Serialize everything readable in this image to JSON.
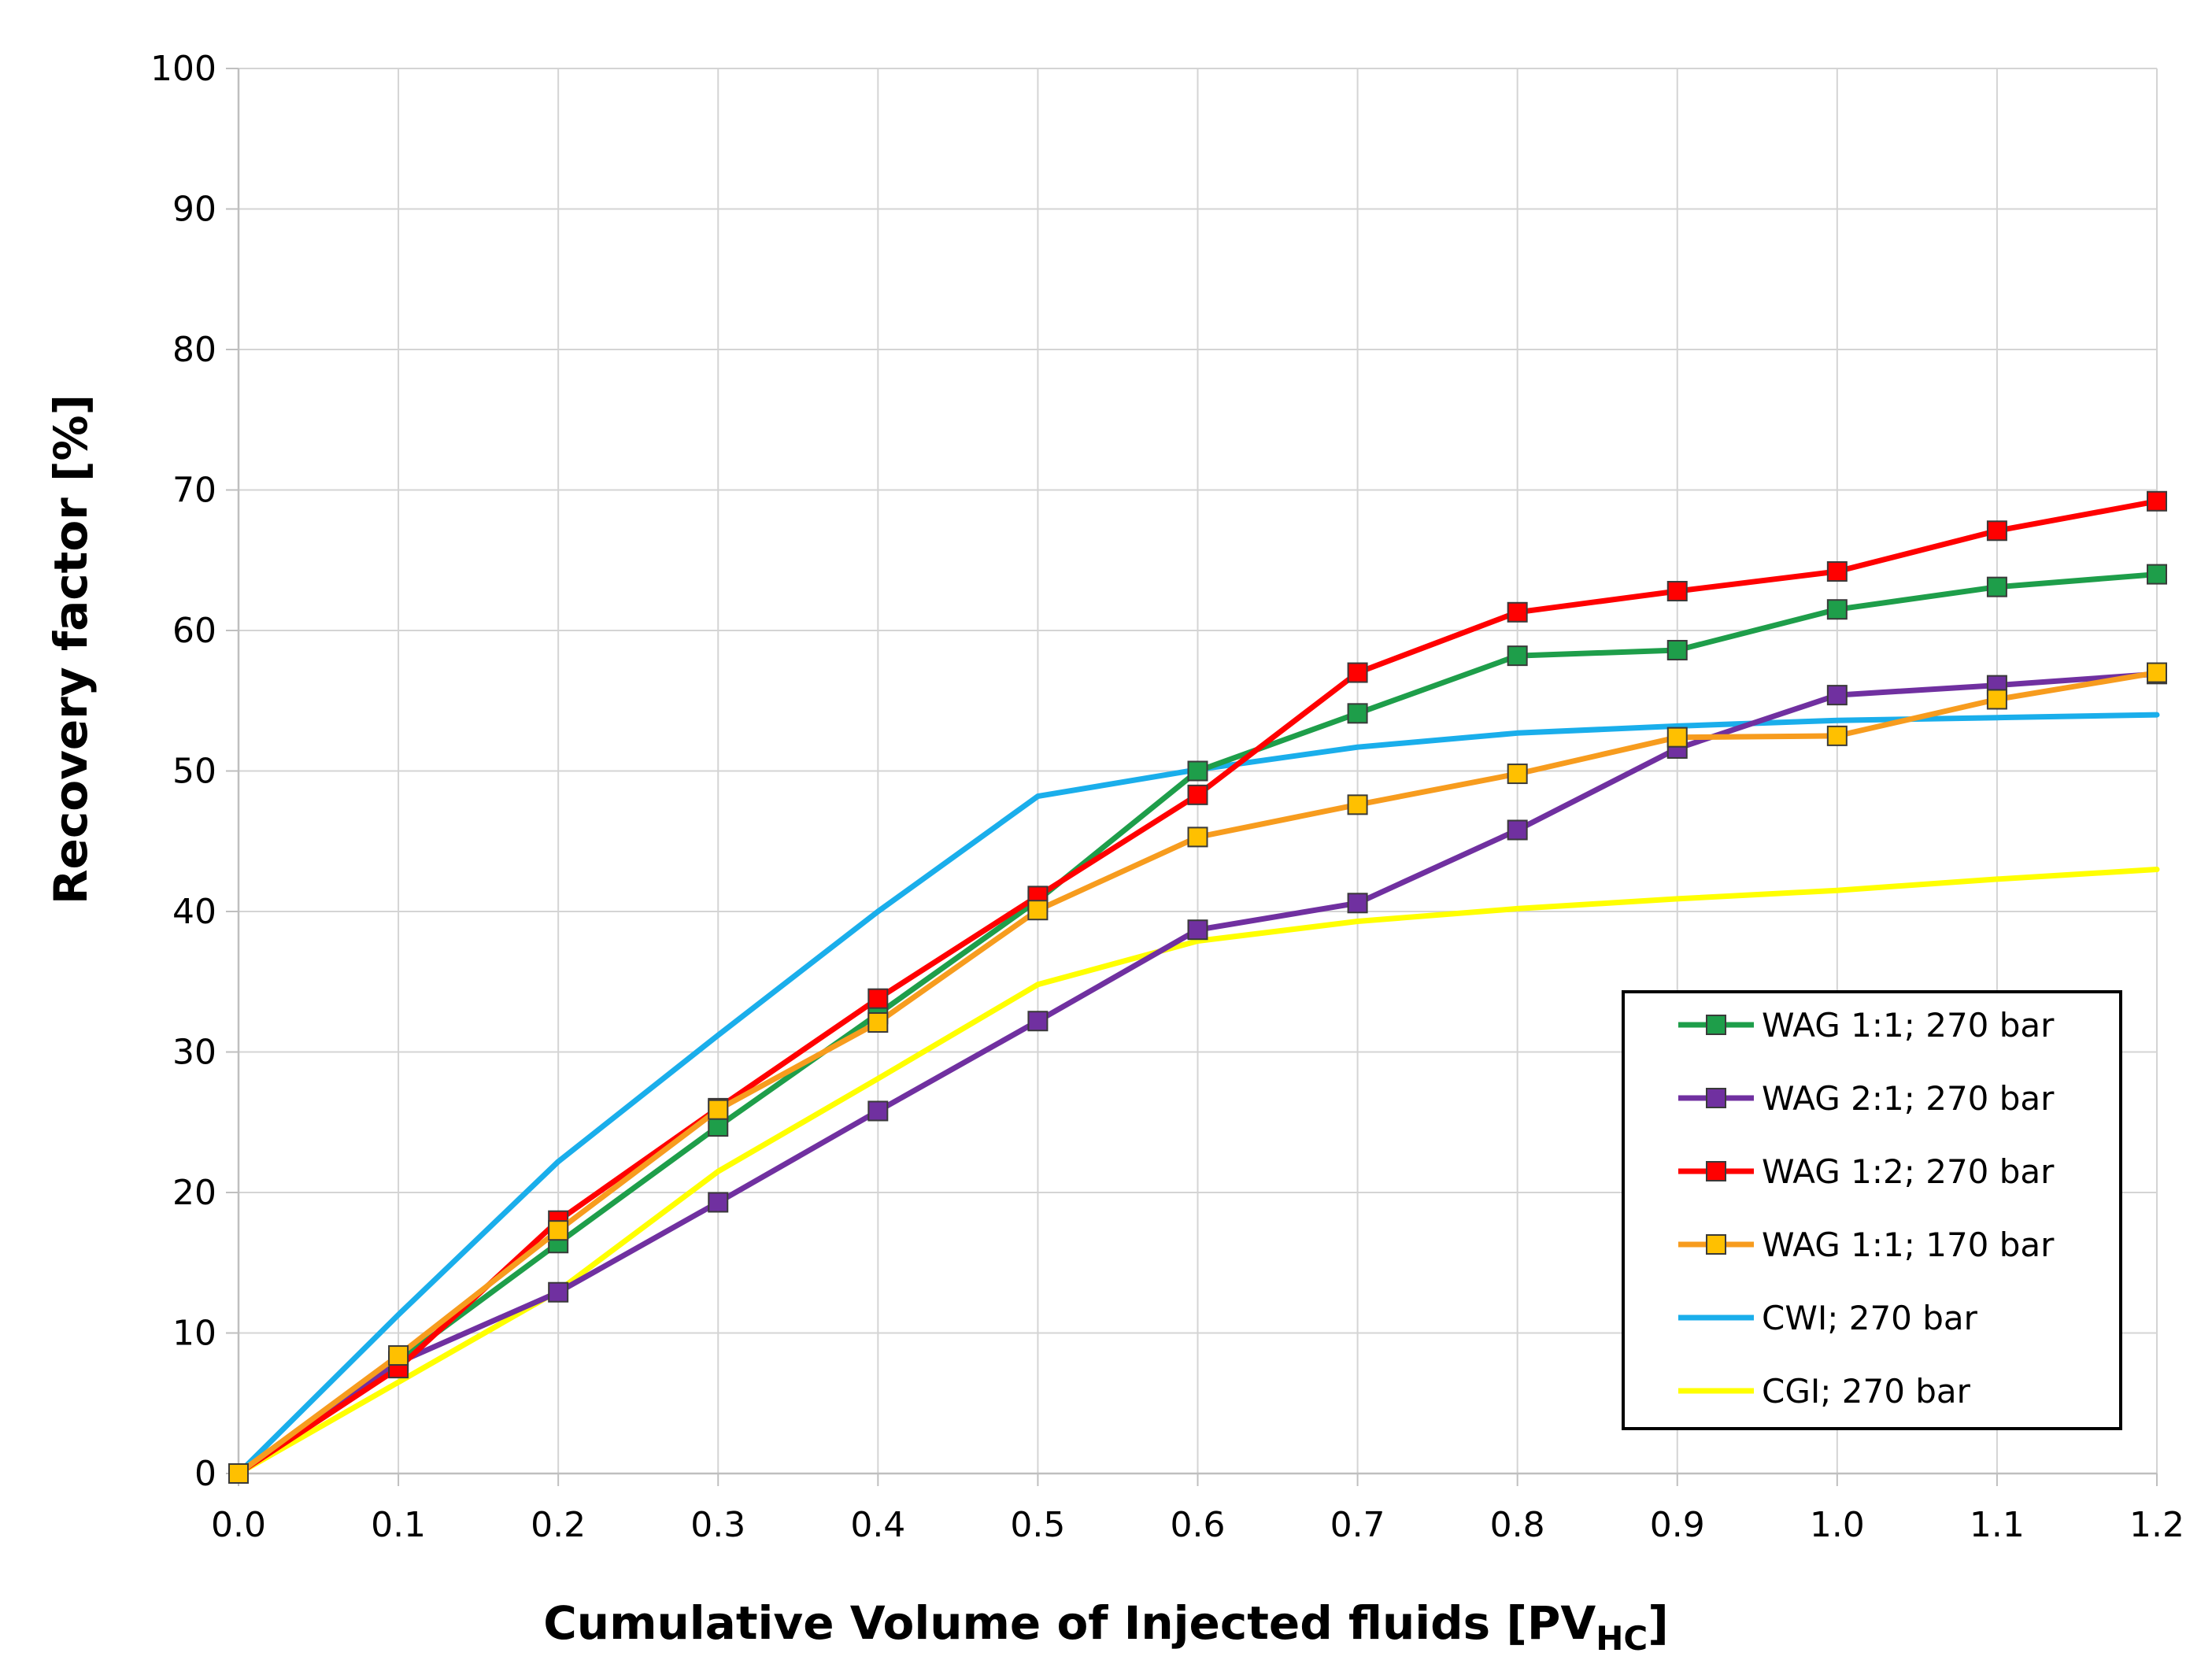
{
  "chart_data": {
    "type": "line",
    "title": "",
    "xlabel": "Cumulative Volume of Injected fluids [PV",
    "xlabel_subscript": "HC",
    "xlabel_suffix": "]",
    "ylabel": "Recovery factor [%]",
    "xlim": [
      0.0,
      1.2
    ],
    "ylim": [
      0,
      100
    ],
    "x_ticks": [
      "0.0",
      "0.1",
      "0.2",
      "0.3",
      "0.4",
      "0.5",
      "0.6",
      "0.7",
      "0.8",
      "0.9",
      "1.0",
      "1.1",
      "1.2"
    ],
    "y_ticks": [
      "0",
      "10",
      "20",
      "30",
      "40",
      "50",
      "60",
      "70",
      "80",
      "90",
      "100"
    ],
    "grid": true,
    "legend_position": "lower-right",
    "x": [
      0.0,
      0.1,
      0.2,
      0.3,
      0.4,
      0.5,
      0.6,
      0.7,
      0.8,
      0.9,
      1.0,
      1.1,
      1.2
    ],
    "series": [
      {
        "name": "WAG 1:1; 270 bar",
        "color": "#1E9E4A",
        "marker": "square",
        "values": [
          0,
          8,
          16.4,
          24.7,
          32.7,
          40.8,
          50.0,
          54.1,
          58.2,
          58.6,
          61.5,
          63.1,
          64.0
        ]
      },
      {
        "name": "WAG 2:1; 270 bar",
        "color": "#7030A0",
        "marker": "square",
        "values": [
          0,
          7.9,
          12.9,
          19.3,
          25.8,
          32.2,
          38.7,
          40.6,
          45.8,
          51.6,
          55.4,
          56.1,
          56.9
        ]
      },
      {
        "name": "WAG 1:2; 270 bar",
        "color": "#FF0000",
        "marker": "square",
        "values": [
          0,
          7.5,
          18.0,
          26.0,
          33.8,
          41.1,
          48.3,
          57.0,
          61.3,
          62.8,
          64.2,
          67.1,
          69.2
        ]
      },
      {
        "name": "WAG 1:1; 170 bar",
        "color": "#F79C1E",
        "marker": "square",
        "marker_fill": "#FFC000",
        "values": [
          0,
          8.4,
          17.3,
          25.9,
          32.1,
          40.1,
          45.3,
          47.6,
          49.8,
          52.4,
          52.5,
          55.1,
          57.0
        ]
      },
      {
        "name": "CWI; 270 bar",
        "color": "#1AAEEB",
        "marker": "none",
        "values": [
          0,
          11.3,
          22.2,
          31.2,
          40.0,
          48.2,
          50.1,
          51.7,
          52.7,
          53.2,
          53.6,
          53.8,
          54.0
        ]
      },
      {
        "name": "CGI; 270 bar",
        "color": "#FFFF00",
        "marker": "none",
        "values": [
          0,
          6.5,
          13.0,
          21.5,
          28.1,
          34.8,
          37.9,
          39.3,
          40.2,
          40.9,
          41.5,
          42.3,
          43.0
        ]
      }
    ]
  }
}
